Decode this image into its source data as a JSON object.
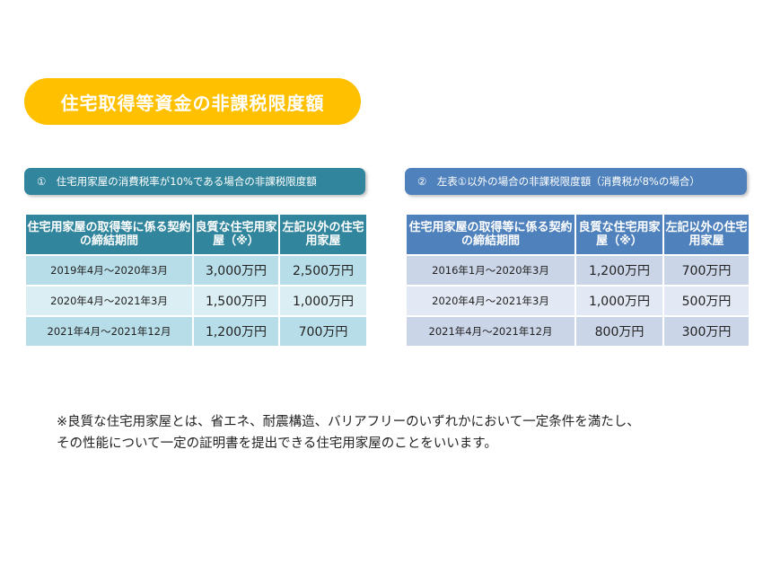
{
  "title": "住宅取得等資金の非課税限度額",
  "section1": {
    "label": "①　住宅用家屋の消費税率が10%である場合の非課税限度額",
    "headers": [
      "住宅用家屋の取得等に係る契約の締結期間",
      "良質な住宅用家屋（※）",
      "左記以外の住宅用家屋"
    ],
    "rows": [
      [
        "2019年4月～2020年3月",
        "3,000万円",
        "2,500万円"
      ],
      [
        "2020年4月～2021年3月",
        "1,500万円",
        "1,000万円"
      ],
      [
        "2021年4月～2021年12月",
        "1,200万円",
        "700万円"
      ]
    ]
  },
  "section2": {
    "label": "②　左表①以外の場合の非課税限度額（消費税が8%の場合）",
    "headers": [
      "住宅用家屋の取得等に係る契約の締結期間",
      "良質な住宅用家屋（※）",
      "左記以外の住宅用家屋"
    ],
    "rows": [
      [
        "2016年1月～2020年3月",
        "1,200万円",
        "700万円"
      ],
      [
        "2020年4月～2021年3月",
        "1,000万円",
        "500万円"
      ],
      [
        "2021年4月～2021年12月",
        "800万円",
        "300万円"
      ]
    ]
  },
  "note": [
    "※良質な住宅用家屋とは、省エネ、耐震構造、バリアフリーのいずれかにおいて一定条件を満たし、",
    "その性能について一定の証明書を提出できる住宅用家屋のことをいいます。"
  ],
  "colors": {
    "title_bg": "#ffc000",
    "section1_header": "#31859c",
    "section2_header": "#4f81bd"
  }
}
